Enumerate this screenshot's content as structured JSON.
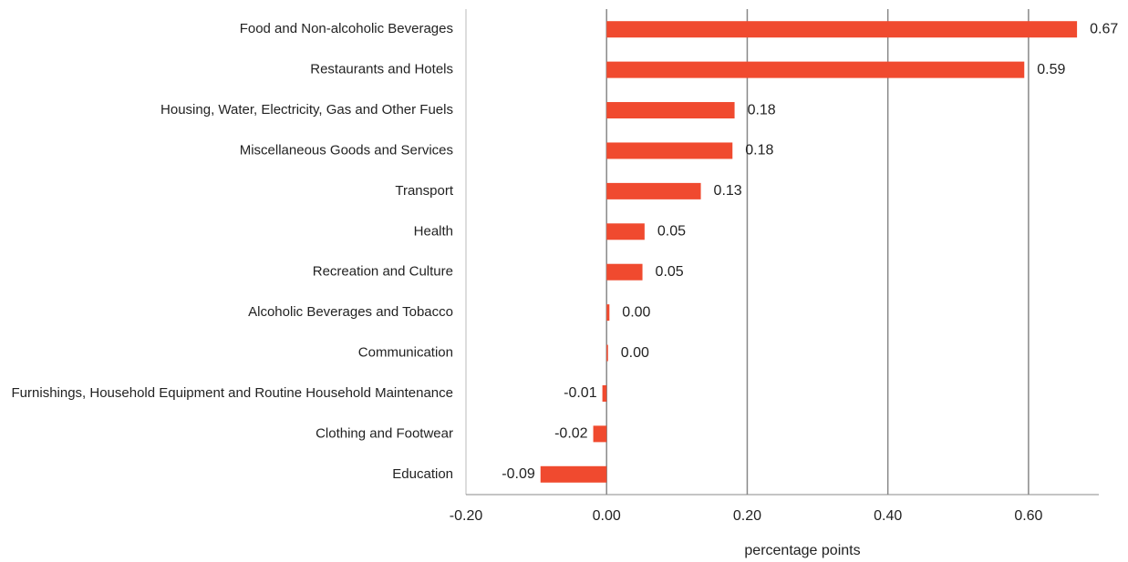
{
  "chart_data": {
    "type": "bar",
    "orientation": "horizontal",
    "categories": [
      "Food and Non-alcoholic Beverages",
      "Restaurants and Hotels",
      "Housing, Water, Electricity, Gas and Other Fuels",
      "Miscellaneous Goods and Services",
      "Transport",
      "Health",
      "Recreation and Culture",
      "Alcoholic Beverages and Tobacco",
      "Communication",
      "Furnishings, Household Equipment and Routine Household Maintenance",
      "Clothing and Footwear",
      "Education"
    ],
    "values": [
      0.669,
      0.594,
      0.182,
      0.179,
      0.134,
      0.054,
      0.051,
      0.004,
      0.002,
      -0.006,
      -0.019,
      -0.094
    ],
    "value_labels": [
      "0.67",
      "0.59",
      "0.18",
      "0.18",
      "0.13",
      "0.05",
      "0.05",
      "0.00",
      "0.00",
      "-0.01",
      "-0.02",
      "-0.09"
    ],
    "color": "#f04a2f",
    "xlim": [
      -0.2,
      0.7
    ],
    "xticks": [
      {
        "value": -0.2,
        "label": "-0.20"
      },
      {
        "value": 0,
        "label": "0.00"
      },
      {
        "value": 0.2,
        "label": "0.20"
      },
      {
        "value": 0.4,
        "label": "0.40"
      },
      {
        "value": 0.6,
        "label": "0.60"
      }
    ],
    "xlabel": "percentage points",
    "grid": true
  }
}
